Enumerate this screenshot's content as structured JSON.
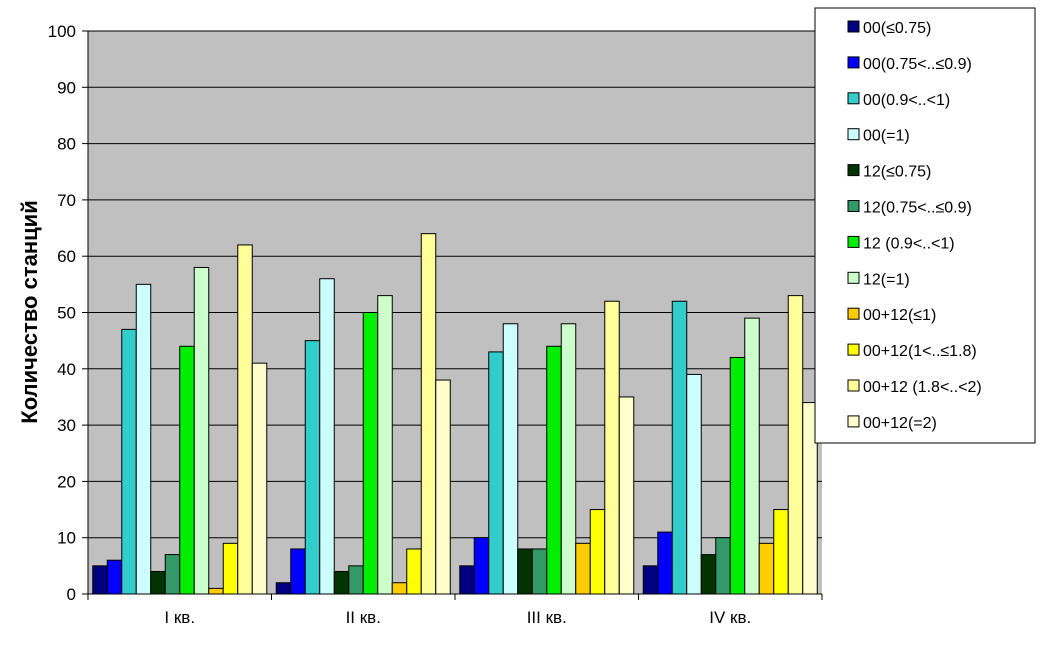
{
  "chart_data": {
    "type": "bar",
    "title": "",
    "xlabel": "",
    "ylabel": "Количество станций",
    "ylim": [
      0,
      100
    ],
    "yticks": [
      0,
      10,
      20,
      30,
      40,
      50,
      60,
      70,
      80,
      90,
      100
    ],
    "grid": true,
    "legend_position": "top-right",
    "categories": [
      "I кв.",
      "II кв.",
      "III кв.",
      "IV кв."
    ],
    "series": [
      {
        "name": "00(≤0.75)",
        "color": "#000080",
        "values": [
          5,
          2,
          5,
          5
        ]
      },
      {
        "name": "00(0.75<..≤0.9)",
        "color": "#0000FF",
        "values": [
          6,
          8,
          10,
          11
        ]
      },
      {
        "name": "00(0.9<..<1)",
        "color": "#33CCCC",
        "values": [
          47,
          45,
          43,
          52
        ]
      },
      {
        "name": "00(=1)",
        "color": "#CCFFFF",
        "values": [
          55,
          56,
          48,
          39
        ]
      },
      {
        "name": "12(≤0.75)",
        "color": "#003300",
        "values": [
          4,
          4,
          8,
          7
        ]
      },
      {
        "name": "12(0.75<..≤0.9)",
        "color": "#339966",
        "values": [
          7,
          5,
          8,
          10
        ]
      },
      {
        "name": "12 (0.9<..<1)",
        "color": "#00EE00",
        "values": [
          44,
          50,
          44,
          42
        ]
      },
      {
        "name": "12(=1)",
        "color": "#CCFFCC",
        "values": [
          58,
          53,
          48,
          49
        ]
      },
      {
        "name": "00+12(≤1)",
        "color": "#FFCC00",
        "values": [
          1,
          2,
          9,
          9
        ]
      },
      {
        "name": "00+12(1<..≤1.8)",
        "color": "#FFFF00",
        "values": [
          9,
          8,
          15,
          15
        ]
      },
      {
        "name": "00+12 (1.8<..<2)",
        "color": "#FFFF99",
        "values": [
          62,
          64,
          52,
          53
        ]
      },
      {
        "name": "00+12(=2)",
        "color": "#FFFFCC",
        "values": [
          41,
          38,
          35,
          34
        ]
      }
    ]
  },
  "colors": {
    "plot_background": "#C0C0C0",
    "gridline": "#000000",
    "bar_outline": "#000000"
  }
}
